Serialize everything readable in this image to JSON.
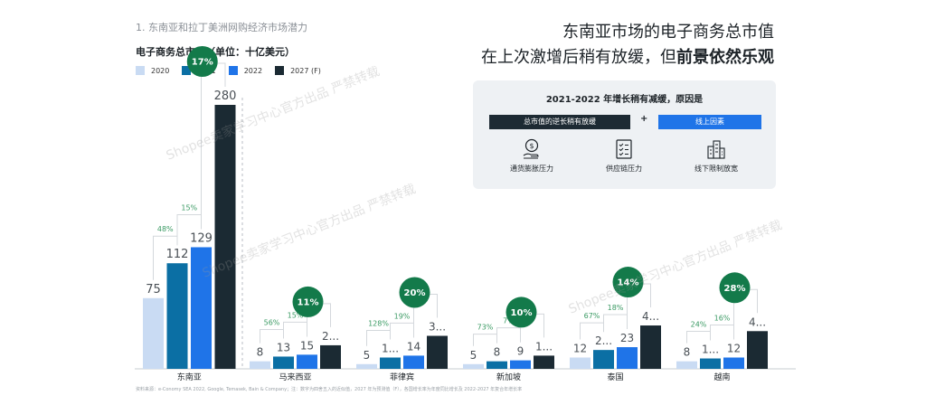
{
  "header": {
    "section_label": "1. 东南亚和拉丁美洲网购经济市场潜力",
    "chart_title": "电子商务总市值（单位：十亿美元）",
    "headline_line1": "东南亚市场的电子商务总市值",
    "headline_line2_prefix": "在上次激增后稍有放缓，但",
    "headline_line2_bold": "前景依然乐观"
  },
  "info_panel": {
    "title": "2021-2022 年增长稍有减缓，原因是",
    "dark_box_label": "总市值的逆长稍有放缓",
    "plus": "+",
    "blue_box_label": "线上因素",
    "factors": [
      {
        "label": "通货膨胀压力",
        "icon": "money-hand-icon"
      },
      {
        "label": "供应链压力",
        "icon": "checklist-icon"
      },
      {
        "label": "线下限制放宽",
        "icon": "buildings-icon"
      }
    ]
  },
  "watermarks": [
    "Shopee卖家学习中心官方出品 严禁转载",
    "Shopee卖家学习中心官方出品 严禁转载",
    "Shopee卖家学习中心官方出品 严禁转载"
  ],
  "footnote": "资料来源：e-Conomy SEA 2022, Google, Temasek, Bain & Company；注：数字为四舍五入的近似值，2027 年为预测值（F），各国增长率为年度同比增长及 2022-2027 年复合年增长率",
  "chart_data": {
    "type": "bar",
    "title": "电子商务总市值（单位：十亿美元）",
    "series": [
      {
        "name": "2020",
        "color": "#c9dbf3"
      },
      {
        "name": "2021",
        "color": "#0b6fa4"
      },
      {
        "name": "2022",
        "color": "#1f74e8"
      },
      {
        "name": "2027 (F)",
        "color": "#1b2a33"
      }
    ],
    "groups": [
      {
        "name": "东南亚",
        "values": [
          75,
          112,
          129,
          280
        ],
        "labels": [
          "75",
          "112",
          "129",
          "280"
        ],
        "growth": [
          "48%",
          "15%"
        ],
        "cagr": "17%"
      },
      {
        "name": "马来西亚",
        "values": [
          8,
          13,
          15,
          25
        ],
        "labels": [
          "8",
          "13",
          "15",
          "2..."
        ],
        "growth": [
          "56%",
          "15%"
        ],
        "cagr": "11%"
      },
      {
        "name": "菲律宾",
        "values": [
          5,
          12,
          14,
          35
        ],
        "labels": [
          "5",
          "1...",
          "14",
          "3..."
        ],
        "growth": [
          "128%",
          "19%"
        ],
        "cagr": "20%"
      },
      {
        "name": "新加坡",
        "values": [
          5,
          8,
          9,
          14
        ],
        "labels": [
          "5",
          "8",
          "9",
          "1..."
        ],
        "growth": [
          "73%",
          "7%"
        ],
        "cagr": "10%"
      },
      {
        "name": "泰国",
        "values": [
          12,
          20,
          23,
          46
        ],
        "labels": [
          "12",
          "2...",
          "23",
          "4..."
        ],
        "growth": [
          "67%",
          "18%"
        ],
        "cagr": "14%"
      },
      {
        "name": "越南",
        "values": [
          8,
          11,
          12,
          40
        ],
        "labels": [
          "8",
          "1...",
          "12",
          "4..."
        ],
        "growth": [
          "24%",
          "16%"
        ],
        "cagr": "28%"
      }
    ],
    "ylim": [
      0,
      280
    ]
  }
}
